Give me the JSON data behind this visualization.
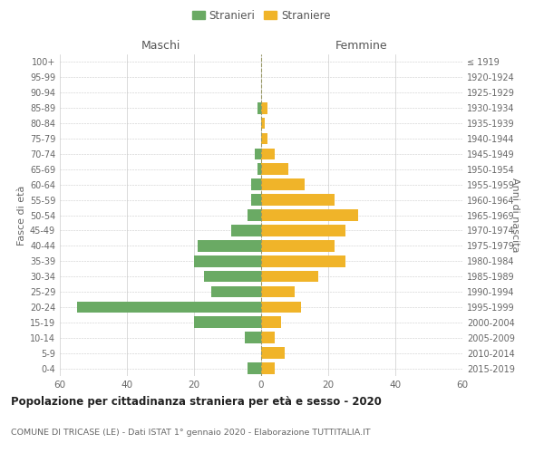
{
  "age_groups": [
    "0-4",
    "5-9",
    "10-14",
    "15-19",
    "20-24",
    "25-29",
    "30-34",
    "35-39",
    "40-44",
    "45-49",
    "50-54",
    "55-59",
    "60-64",
    "65-69",
    "70-74",
    "75-79",
    "80-84",
    "85-89",
    "90-94",
    "95-99",
    "100+"
  ],
  "birth_years": [
    "2015-2019",
    "2010-2014",
    "2005-2009",
    "2000-2004",
    "1995-1999",
    "1990-1994",
    "1985-1989",
    "1980-1984",
    "1975-1979",
    "1970-1974",
    "1965-1969",
    "1960-1964",
    "1955-1959",
    "1950-1954",
    "1945-1949",
    "1940-1944",
    "1935-1939",
    "1930-1934",
    "1925-1929",
    "1920-1924",
    "≤ 1919"
  ],
  "males": [
    4,
    0,
    5,
    20,
    55,
    15,
    17,
    20,
    19,
    9,
    4,
    3,
    3,
    1,
    2,
    0,
    0,
    1,
    0,
    0,
    0
  ],
  "females": [
    4,
    7,
    4,
    6,
    12,
    10,
    17,
    25,
    22,
    25,
    29,
    22,
    13,
    8,
    4,
    2,
    1,
    2,
    0,
    0,
    0
  ],
  "male_color": "#6aaa64",
  "female_color": "#f0b429",
  "male_label": "Stranieri",
  "female_label": "Straniere",
  "title": "Popolazione per cittadinanza straniera per età e sesso - 2020",
  "subtitle": "COMUNE DI TRICASE (LE) - Dati ISTAT 1° gennaio 2020 - Elaborazione TUTTITALIA.IT",
  "xlabel_left": "Maschi",
  "xlabel_right": "Femmine",
  "ylabel_left": "Fasce di età",
  "ylabel_right": "Anni di nascita",
  "xlim": 60,
  "background_color": "#ffffff",
  "grid_color": "#cccccc"
}
